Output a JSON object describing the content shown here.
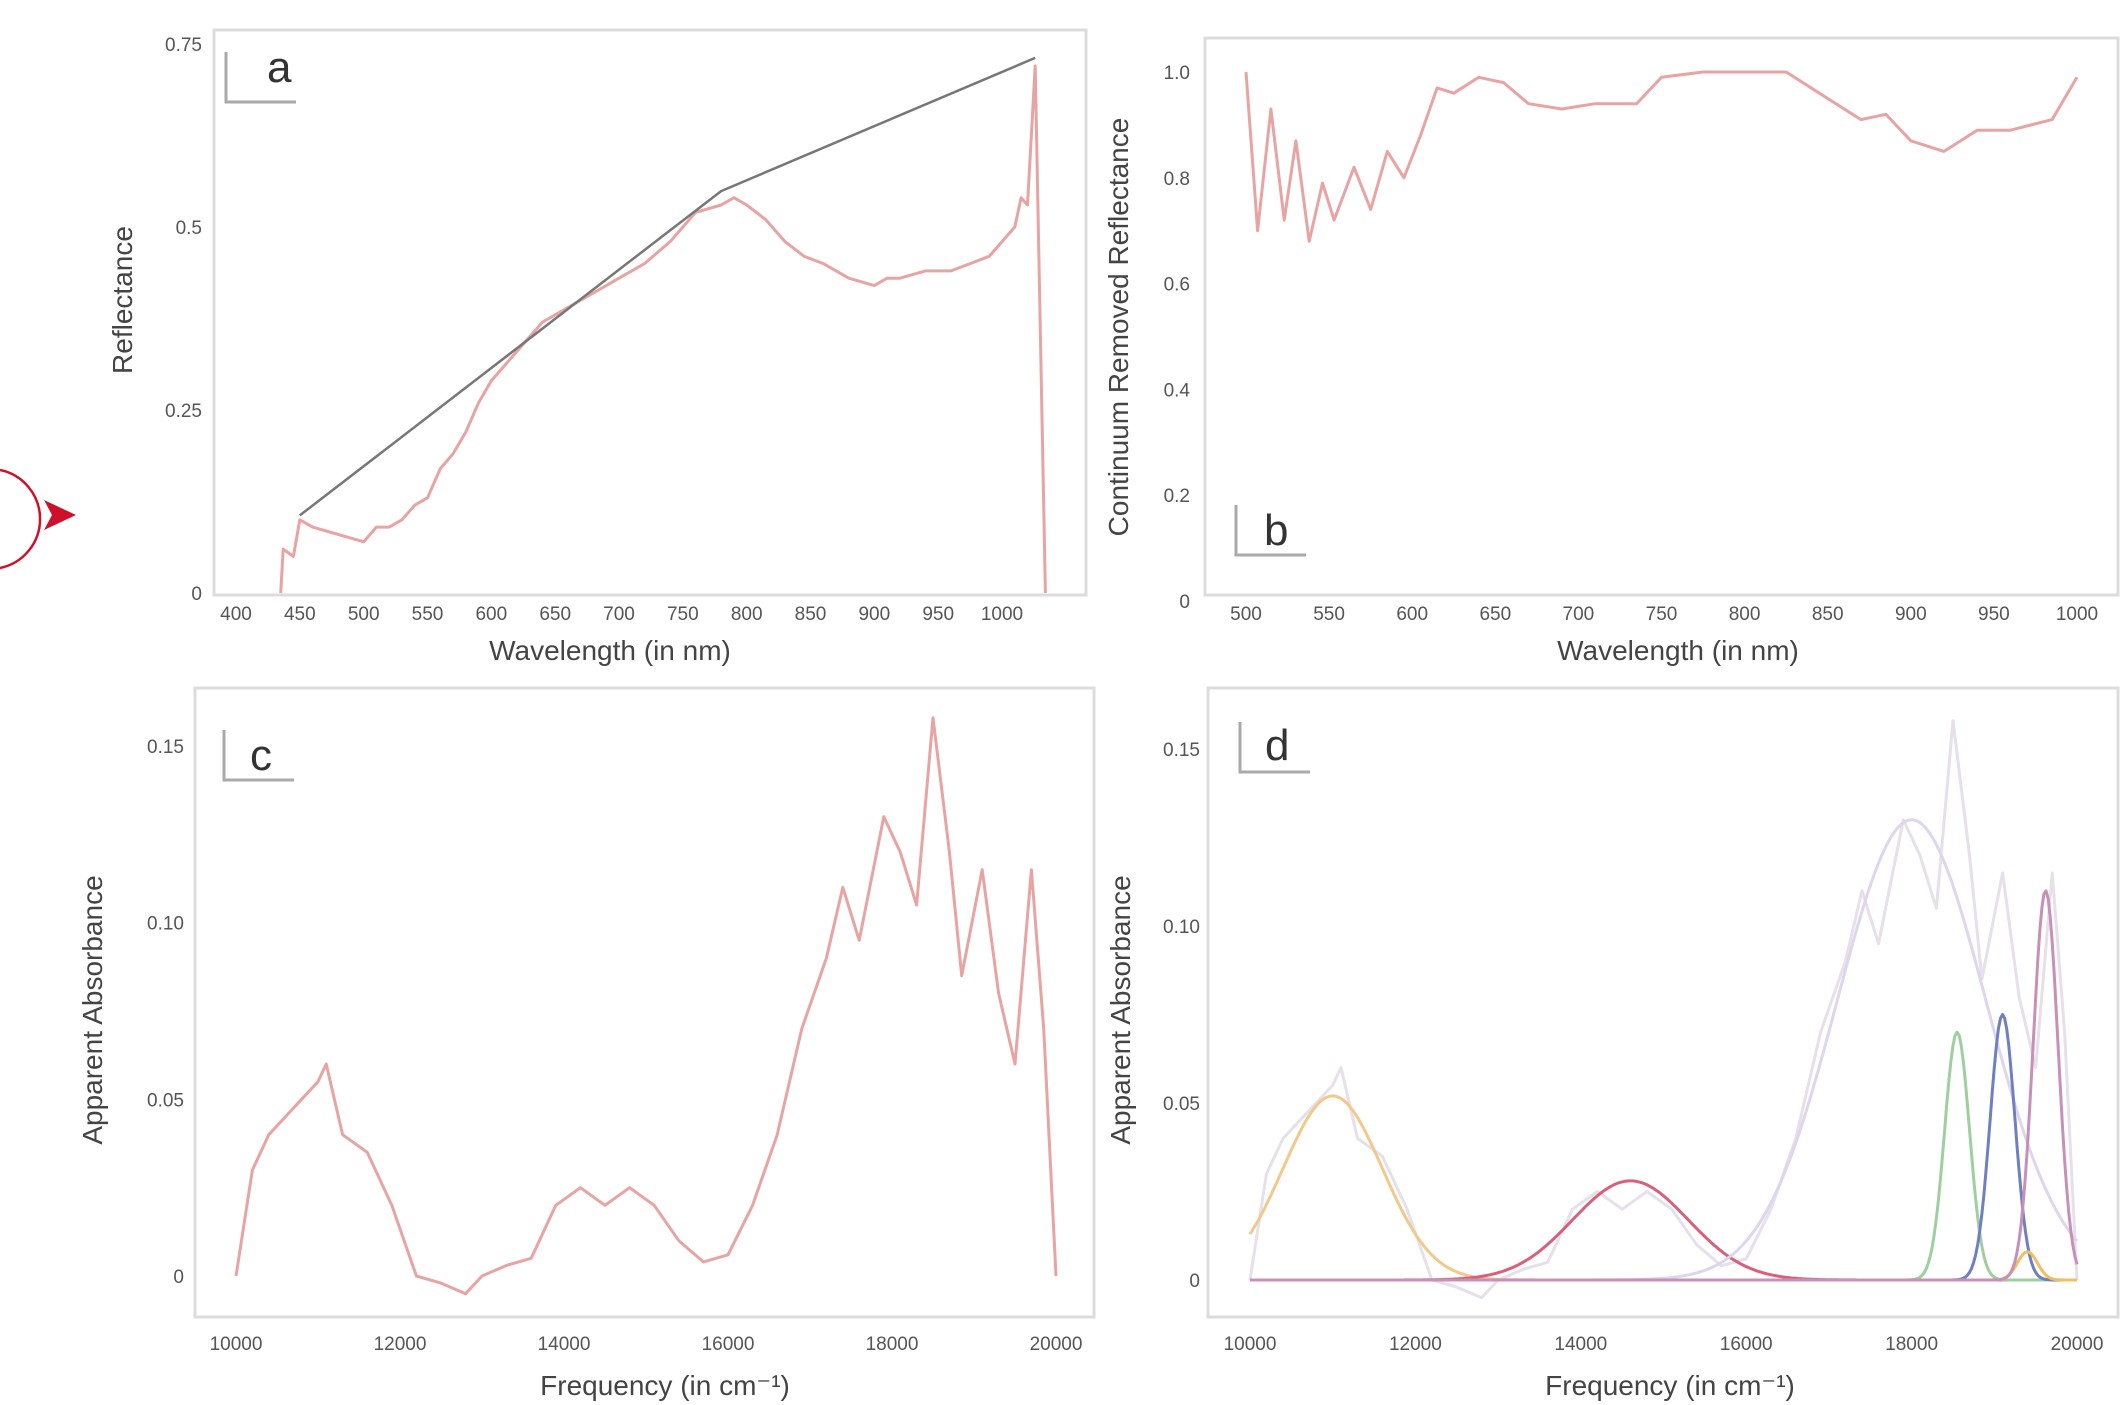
{
  "chart_data": [
    {
      "panel": "a",
      "type": "line",
      "xlabel": "Wavelength (in nm)",
      "ylabel": "Reflectance",
      "xlim": [
        400,
        1050
      ],
      "ylim": [
        0,
        0.75
      ],
      "xticks": [
        "400",
        "450",
        "500",
        "550",
        "600",
        "650",
        "700",
        "750",
        "800",
        "850",
        "900",
        "950",
        "1000"
      ],
      "yticks": [
        "0",
        "0.25",
        "0.5",
        "0.75"
      ],
      "grid": false,
      "series": [
        {
          "role": "spectrum",
          "color": "#e8a3a3",
          "x": [
            435,
            437,
            445,
            450,
            460,
            480,
            500,
            510,
            520,
            530,
            540,
            550,
            560,
            570,
            580,
            590,
            600,
            610,
            620,
            640,
            650,
            670,
            690,
            700,
            720,
            740,
            760,
            780,
            790,
            800,
            815,
            830,
            845,
            860,
            880,
            900,
            910,
            920,
            940,
            960,
            975,
            990,
            1000,
            1010,
            1015,
            1020,
            1026,
            1034
          ],
          "y": [
            0,
            0.06,
            0.05,
            0.1,
            0.09,
            0.08,
            0.07,
            0.09,
            0.09,
            0.1,
            0.12,
            0.13,
            0.17,
            0.19,
            0.22,
            0.26,
            0.29,
            0.31,
            0.33,
            0.37,
            0.38,
            0.4,
            0.42,
            0.43,
            0.45,
            0.48,
            0.52,
            0.53,
            0.54,
            0.53,
            0.51,
            0.48,
            0.46,
            0.45,
            0.43,
            0.42,
            0.43,
            0.43,
            0.44,
            0.44,
            0.45,
            0.46,
            0.48,
            0.5,
            0.54,
            0.53,
            0.72,
            0
          ]
        },
        {
          "role": "continuum",
          "color": "#777777",
          "x": [
            450,
            780,
            1026
          ],
          "y": [
            0.106,
            0.549,
            0.731
          ]
        }
      ]
    },
    {
      "panel": "b",
      "type": "line",
      "xlabel": "Wavelength (in nm)",
      "ylabel": "Continuum Removed Reflectance",
      "xlim": [
        475,
        1010
      ],
      "ylim": [
        0,
        1.05
      ],
      "xticks": [
        "500",
        "550",
        "600",
        "650",
        "700",
        "750",
        "800",
        "850",
        "900",
        "950",
        "1000"
      ],
      "yticks": [
        "0",
        "0.2",
        "0.4",
        "0.6",
        "0.8",
        "1.0"
      ],
      "grid": false,
      "series": [
        {
          "role": "continuum-removed",
          "color": "#e8a3a3",
          "x": [
            500,
            507,
            515,
            523,
            530,
            538,
            546,
            553,
            565,
            575,
            585,
            595,
            605,
            615,
            625,
            640,
            655,
            670,
            690,
            710,
            735,
            750,
            775,
            800,
            825,
            845,
            870,
            885,
            900,
            920,
            940,
            960,
            985,
            1000
          ],
          "y": [
            1.0,
            0.7,
            0.93,
            0.72,
            0.87,
            0.68,
            0.79,
            0.72,
            0.82,
            0.74,
            0.85,
            0.8,
            0.88,
            0.97,
            0.96,
            0.99,
            0.98,
            0.94,
            0.93,
            0.94,
            0.94,
            0.99,
            1.0,
            1.0,
            1.0,
            0.96,
            0.91,
            0.92,
            0.87,
            0.85,
            0.89,
            0.89,
            0.91,
            0.99
          ]
        }
      ]
    },
    {
      "panel": "c",
      "type": "line",
      "xlabel": "Frequency (in cm⁻¹)",
      "ylabel": "Apparent Absorbance",
      "xlim": [
        9800,
        20400
      ],
      "ylim": [
        -0.01,
        0.16
      ],
      "xticks": [
        "10000",
        "12000",
        "14000",
        "16000",
        "18000",
        "20000"
      ],
      "yticks": [
        "0",
        "0.05",
        "0.10",
        "0.15"
      ],
      "grid": false,
      "series": [
        {
          "role": "absorbance",
          "color": "#e8a3a3",
          "x": [
            10000,
            10200,
            10400,
            10600,
            10800,
            11000,
            11100,
            11300,
            11600,
            11900,
            12200,
            12500,
            12800,
            13000,
            13300,
            13600,
            13900,
            14200,
            14500,
            14800,
            15100,
            15400,
            15700,
            16000,
            16300,
            16600,
            16900,
            17200,
            17400,
            17600,
            17900,
            18100,
            18300,
            18500,
            18700,
            18850,
            19100,
            19300,
            19500,
            19700,
            19850,
            20000
          ],
          "y": [
            0,
            0.03,
            0.04,
            0.045,
            0.05,
            0.055,
            0.06,
            0.04,
            0.035,
            0.02,
            0.0,
            -0.002,
            -0.005,
            0.0,
            0.003,
            0.005,
            0.02,
            0.025,
            0.02,
            0.025,
            0.02,
            0.01,
            0.004,
            0.006,
            0.02,
            0.04,
            0.07,
            0.09,
            0.11,
            0.095,
            0.13,
            0.12,
            0.105,
            0.158,
            0.12,
            0.085,
            0.115,
            0.08,
            0.06,
            0.115,
            0.07,
            0.0
          ]
        }
      ]
    },
    {
      "panel": "d",
      "type": "line",
      "xlabel": "Frequency (in cm⁻¹)",
      "ylabel": "Apparent Absorbance",
      "xlim": [
        9800,
        20400
      ],
      "ylim": [
        -0.01,
        0.16
      ],
      "xticks": [
        "10000",
        "12000",
        "14000",
        "16000",
        "18000",
        "20000"
      ],
      "yticks": [
        "0",
        "0.05",
        "0.10",
        "0.15"
      ],
      "grid": false,
      "series": [
        {
          "role": "absorbance",
          "color": "#e6e0ea",
          "same_as_panel": "c"
        },
        {
          "role": "gaussian-component",
          "color": "#f2c98a",
          "center": 11000,
          "amplitude": 0.052,
          "width": 600
        },
        {
          "role": "gaussian-component",
          "color": "#d9607a",
          "center": 14600,
          "amplitude": 0.028,
          "width": 700
        },
        {
          "role": "gaussian-component",
          "color": "#ddd6ee",
          "center": 18000,
          "amplitude": 0.13,
          "width": 900
        },
        {
          "role": "gaussian-component",
          "color": "#9fcf9f",
          "center": 18550,
          "amplitude": 0.07,
          "width": 150
        },
        {
          "role": "gaussian-component",
          "color": "#6f7fc0",
          "center": 19100,
          "amplitude": 0.075,
          "width": 150
        },
        {
          "role": "gaussian-component",
          "color": "#f0c060",
          "center": 19400,
          "amplitude": 0.008,
          "width": 120
        },
        {
          "role": "gaussian-component",
          "color": "#c890b8",
          "center": 19620,
          "amplitude": 0.11,
          "width": 150
        }
      ]
    }
  ],
  "annotation": {
    "arrow_color": "#d0102a"
  }
}
